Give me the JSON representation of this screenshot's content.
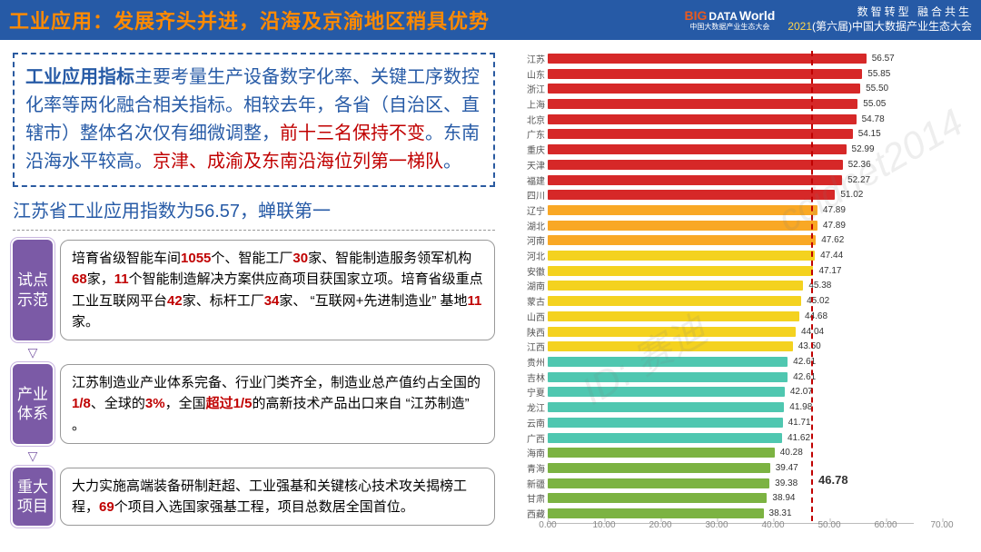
{
  "header": {
    "title": "工业应用：发展齐头并进，沿海及京渝地区稍具优势",
    "logo_big": "BIG",
    "logo_data": "DATA",
    "logo_world": "World",
    "logo_sub": "中国大数据产业生态大会",
    "tagline1": "数智转型 融合共生",
    "tagline_year": "2021",
    "tagline_rest": "(第六届)中国大数据产业生态大会"
  },
  "box1": {
    "bold": "工业应用指标",
    "t1": "主要考量生产设备数字化率、关键工序数控化率等两化融合相关指标。相较去年，各省（自治区、直辖市）整体名次仅有细微调整，",
    "red1": "前十三名保持不变",
    "t2": "。东南沿海水平较高。",
    "red2": "京津、成渝及东南沿海位列第一梯队",
    "t3": "。"
  },
  "subtitle": "江苏省工业应用指数为56.57，蝉联第一",
  "cards": [
    {
      "tag": "试点示范",
      "segments": [
        {
          "t": "培育省级智能车间"
        },
        {
          "t": "1055",
          "r": 1
        },
        {
          "t": "个、智能工厂"
        },
        {
          "t": "30",
          "r": 1
        },
        {
          "t": "家、智能制造服务领军机构"
        },
        {
          "t": "68",
          "r": 1
        },
        {
          "t": "家，"
        },
        {
          "t": "11",
          "r": 1
        },
        {
          "t": "个智能制造解决方案供应商项目获国家立项。培育省级重点工业互联网平台"
        },
        {
          "t": "42",
          "r": 1
        },
        {
          "t": "家、标杆工厂"
        },
        {
          "t": "34",
          "r": 1
        },
        {
          "t": "家、 “互联网+先进制造业” 基地"
        },
        {
          "t": "11",
          "r": 1
        },
        {
          "t": "家。"
        }
      ]
    },
    {
      "tag": "产业体系",
      "segments": [
        {
          "t": "江苏制造业产业体系完备、行业门类齐全，制造业总产值约占全国的"
        },
        {
          "t": "1/8",
          "r": 1
        },
        {
          "t": "、全球的"
        },
        {
          "t": "3%",
          "r": 1
        },
        {
          "t": "，全国"
        },
        {
          "t": "超过1/5",
          "r": 1
        },
        {
          "t": "的高新技术产品出口来自 “江苏制造” 。"
        }
      ]
    },
    {
      "tag": "重大项目",
      "segments": [
        {
          "t": "大力实施高端装备研制赶超、工业强基和关键核心技术攻关揭榜工程，"
        },
        {
          "t": "69",
          "r": 1
        },
        {
          "t": "个项目入选国家强基工程，项目总数居全国首位。"
        }
      ]
    }
  ],
  "arrow": "▽",
  "chart": {
    "max": 65,
    "avg": 46.78,
    "avg_label": "46.78",
    "ticks": [
      "0.00",
      "10.00",
      "20.00",
      "30.00",
      "40.00",
      "50.00",
      "60.00",
      "70.00"
    ],
    "colors": {
      "red": "#d62828",
      "orange": "#f9a825",
      "yellow": "#f4d21f",
      "teal": "#4fc7b0",
      "green": "#7cb342"
    },
    "bars": [
      {
        "name": "江苏",
        "v": 56.57,
        "c": "red"
      },
      {
        "name": "山东",
        "v": 55.85,
        "c": "red"
      },
      {
        "name": "浙江",
        "v": 55.5,
        "c": "red"
      },
      {
        "name": "上海",
        "v": 55.05,
        "c": "red"
      },
      {
        "name": "北京",
        "v": 54.78,
        "c": "red"
      },
      {
        "name": "广东",
        "v": 54.15,
        "c": "red"
      },
      {
        "name": "重庆",
        "v": 52.99,
        "c": "red"
      },
      {
        "name": "天津",
        "v": 52.36,
        "c": "red"
      },
      {
        "name": "福建",
        "v": 52.27,
        "c": "red"
      },
      {
        "name": "四川",
        "v": 51.02,
        "c": "red"
      },
      {
        "name": "辽宁",
        "v": 47.89,
        "c": "orange"
      },
      {
        "name": "湖北",
        "v": 47.89,
        "c": "orange"
      },
      {
        "name": "河南",
        "v": 47.62,
        "c": "orange"
      },
      {
        "name": "河北",
        "v": 47.44,
        "c": "yellow"
      },
      {
        "name": "安徽",
        "v": 47.17,
        "c": "yellow"
      },
      {
        "name": "湖南",
        "v": 45.38,
        "c": "yellow"
      },
      {
        "name": "蒙古",
        "v": 45.02,
        "c": "yellow"
      },
      {
        "name": "山西",
        "v": 44.68,
        "c": "yellow"
      },
      {
        "name": "陕西",
        "v": 44.04,
        "c": "yellow"
      },
      {
        "name": "江西",
        "v": 43.5,
        "c": "yellow"
      },
      {
        "name": "贵州",
        "v": 42.61,
        "c": "teal"
      },
      {
        "name": "吉林",
        "v": 42.61,
        "c": "teal"
      },
      {
        "name": "宁夏",
        "v": 42.07,
        "c": "teal"
      },
      {
        "name": "龙江",
        "v": 41.98,
        "c": "teal"
      },
      {
        "name": "云南",
        "v": 41.71,
        "c": "teal"
      },
      {
        "name": "广西",
        "v": 41.62,
        "c": "teal"
      },
      {
        "name": "海南",
        "v": 40.28,
        "c": "green"
      },
      {
        "name": "青海",
        "v": 39.47,
        "c": "green"
      },
      {
        "name": "新疆",
        "v": 39.38,
        "c": "green"
      },
      {
        "name": "甘肃",
        "v": 38.94,
        "c": "green"
      },
      {
        "name": "西藏",
        "v": 38.31,
        "c": "green"
      }
    ]
  },
  "watermarks": [
    "ccidnet2014",
    "ID: 赛迪"
  ]
}
